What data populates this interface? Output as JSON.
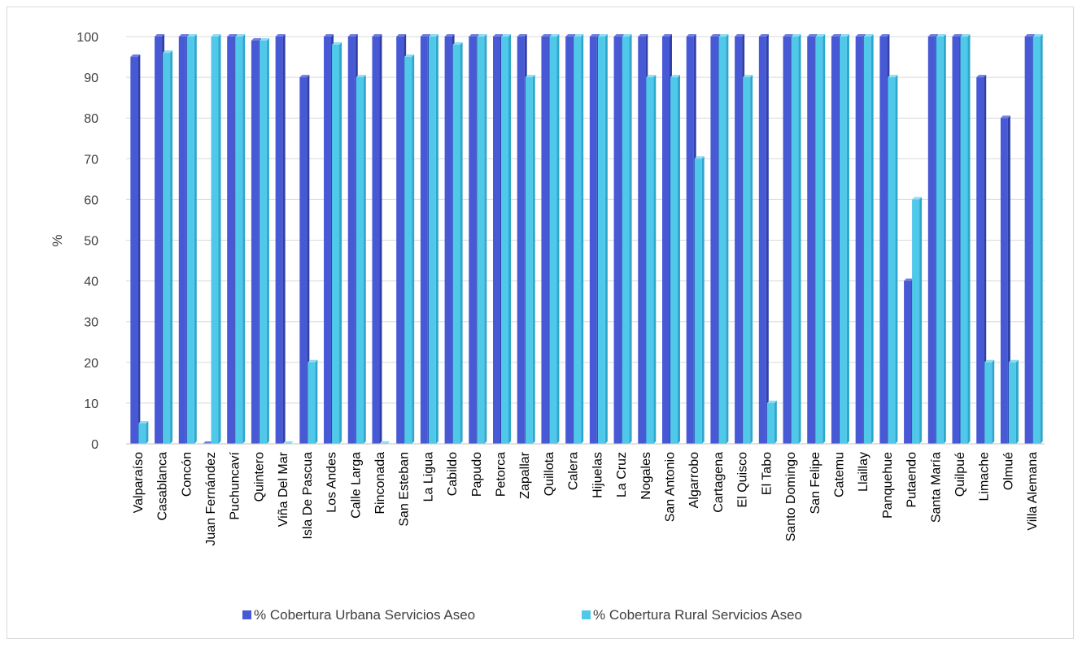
{
  "chart_data": {
    "type": "bar",
    "title": "",
    "xlabel": "",
    "ylabel": "%",
    "ylim": [
      0,
      100
    ],
    "yticks": [
      0,
      10,
      20,
      30,
      40,
      50,
      60,
      70,
      80,
      90,
      100
    ],
    "grid": "horizontal",
    "legend_position": "bottom",
    "categories": [
      "Valparaíso",
      "Casablanca",
      "Concón",
      "Juan Fernández",
      "Puchuncaví",
      "Quintero",
      "Viña Del Mar",
      "Isla De Pascua",
      "Los Andes",
      "Calle Larga",
      "Rinconada",
      "San Esteban",
      "La Ligua",
      "Cabildo",
      "Papudo",
      "Petorca",
      "Zapallar",
      "Quillota",
      "Calera",
      "Hijuelas",
      "La Cruz",
      "Nogales",
      "San Antonio",
      "Algarrobo",
      "Cartagena",
      "El Quisco",
      "El Tabo",
      "Santo Domingo",
      "San Felipe",
      "Catemu",
      "Llaillay",
      "Panquehue",
      "Putaendo",
      "Santa María",
      "Quilpué",
      "Limache",
      "Olmué",
      "Villa Alemana"
    ],
    "series": [
      {
        "name": "% Cobertura Urbana Servicios Aseo",
        "color": "#4759d4",
        "values": [
          95,
          100,
          100,
          0,
          100,
          99,
          100,
          90,
          100,
          100,
          100,
          100,
          100,
          100,
          100,
          100,
          100,
          100,
          100,
          100,
          100,
          100,
          100,
          100,
          100,
          100,
          100,
          100,
          100,
          100,
          100,
          100,
          40,
          100,
          100,
          90,
          80,
          100
        ]
      },
      {
        "name": "% Cobertura Rural Servicios Aseo",
        "color": "#4fc8ea",
        "values": [
          5,
          96,
          100,
          100,
          100,
          99,
          0,
          20,
          98,
          90,
          0,
          95,
          100,
          98,
          100,
          100,
          90,
          100,
          100,
          100,
          100,
          90,
          90,
          70,
          100,
          90,
          10,
          100,
          100,
          100,
          100,
          90,
          60,
          100,
          100,
          20,
          20,
          100
        ]
      }
    ]
  }
}
